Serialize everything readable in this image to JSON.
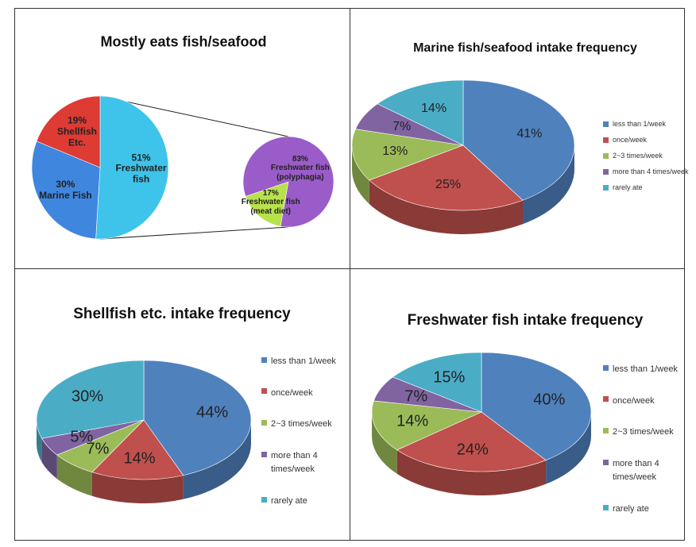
{
  "chart_data": [
    {
      "type": "pie",
      "title": "Mostly eats fish/seafood",
      "categories": [
        "Freshwater fish",
        "Marine Fish",
        "Shellfish Etc."
      ],
      "values": [
        51,
        30,
        19
      ],
      "value_labels": [
        "51%",
        "30%",
        "19%"
      ],
      "colors": [
        "#3ec3ea",
        "#3f86de",
        "#de3b34"
      ],
      "detail": {
        "categories": [
          "Freshwater fish (meat diet)",
          "Freshwater fish (polyphagia)"
        ],
        "values": [
          17,
          83
        ],
        "value_labels": [
          "17%",
          "83%"
        ],
        "colors": [
          "#b8e24c",
          "#9a5cc8"
        ]
      }
    },
    {
      "type": "pie3d",
      "title": "Marine fish/seafood intake frequency",
      "categories": [
        "less than 1/week",
        "once/week",
        "2~3 times/week",
        "more than 4 times/week",
        "rarely ate"
      ],
      "values": [
        41,
        25,
        13,
        7,
        14
      ],
      "value_labels": [
        "41%",
        "25%",
        "13%",
        "7%",
        "14%"
      ],
      "colors": [
        "#4f81bd",
        "#c0504d",
        "#9bbb59",
        "#8064a2",
        "#4bacc6"
      ]
    },
    {
      "type": "pie3d",
      "title": "Shellfish etc. intake frequency",
      "categories": [
        "less than 1/week",
        "once/week",
        "2~3 times/week",
        "more than 4 times/week",
        "rarely ate"
      ],
      "values": [
        44,
        14,
        7,
        5,
        30
      ],
      "value_labels": [
        "44%",
        "14%",
        "7%",
        "5%",
        "30%"
      ],
      "colors": [
        "#4f81bd",
        "#c0504d",
        "#9bbb59",
        "#8064a2",
        "#4bacc6"
      ]
    },
    {
      "type": "pie3d",
      "title": "Freshwater fish intake frequency",
      "categories": [
        "less than 1/week",
        "once/week",
        "2~3 times/week",
        "more than 4 times/week",
        "rarely ate"
      ],
      "values": [
        40,
        24,
        14,
        7,
        15
      ],
      "value_labels": [
        "40%",
        "24%",
        "14%",
        "7%",
        "15%"
      ],
      "colors": [
        "#4f81bd",
        "#c0504d",
        "#9bbb59",
        "#8064a2",
        "#4bacc6"
      ]
    }
  ]
}
